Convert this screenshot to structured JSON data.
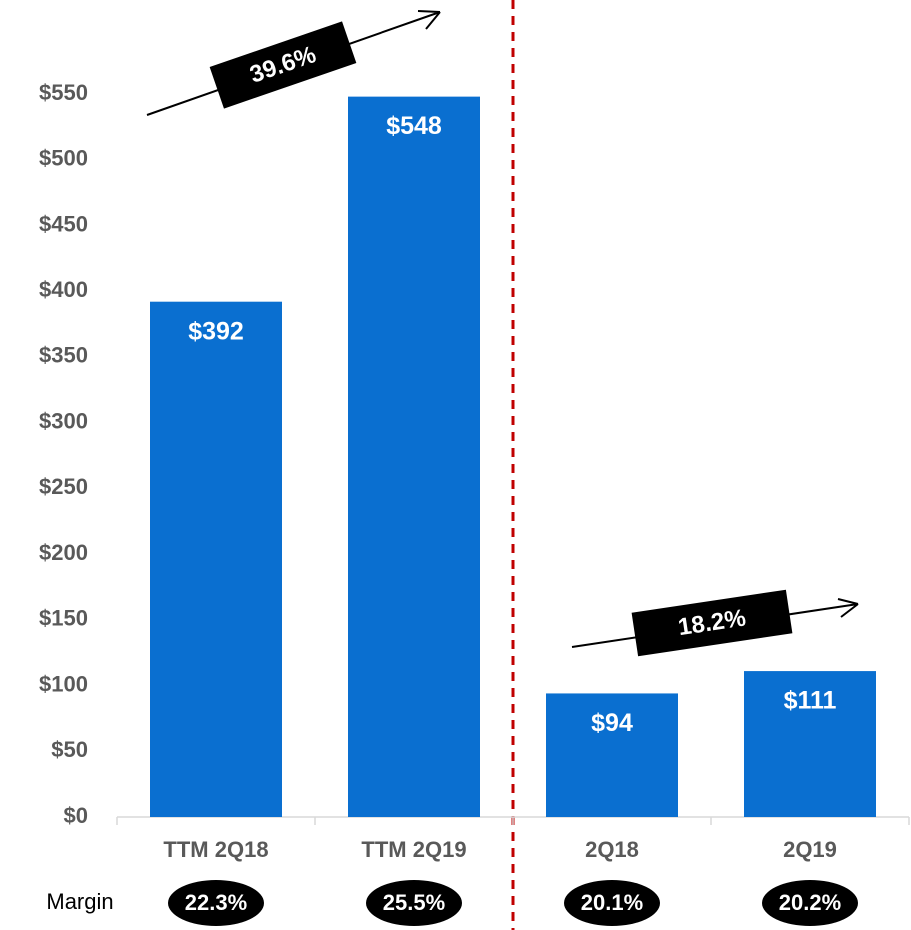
{
  "chart_data": {
    "type": "bar",
    "categories": [
      "TTM 2Q18",
      "TTM 2Q19",
      "2Q18",
      "2Q19"
    ],
    "values": [
      392,
      548,
      94,
      111
    ],
    "value_labels": [
      "$392",
      "$548",
      "$94",
      "$111"
    ],
    "color": "#0a6fd0",
    "ylim": [
      0,
      550
    ],
    "yticks": [
      {
        "value": 0,
        "label": "$0"
      },
      {
        "value": 50,
        "label": "$50"
      },
      {
        "value": 100,
        "label": "$100"
      },
      {
        "value": 150,
        "label": "$150"
      },
      {
        "value": 200,
        "label": "$200"
      },
      {
        "value": 250,
        "label": "$250"
      },
      {
        "value": 300,
        "label": "$300"
      },
      {
        "value": 350,
        "label": "$350"
      },
      {
        "value": 400,
        "label": "$400"
      },
      {
        "value": 450,
        "label": "$450"
      },
      {
        "value": 500,
        "label": "$500"
      },
      {
        "value": 550,
        "label": "$550"
      }
    ],
    "grid": false,
    "growth_labels": [
      "39.6%",
      "18.2%"
    ],
    "margin_label": "Margin",
    "margins": [
      "22.3%",
      "25.5%",
      "20.1%",
      "20.2%"
    ]
  }
}
